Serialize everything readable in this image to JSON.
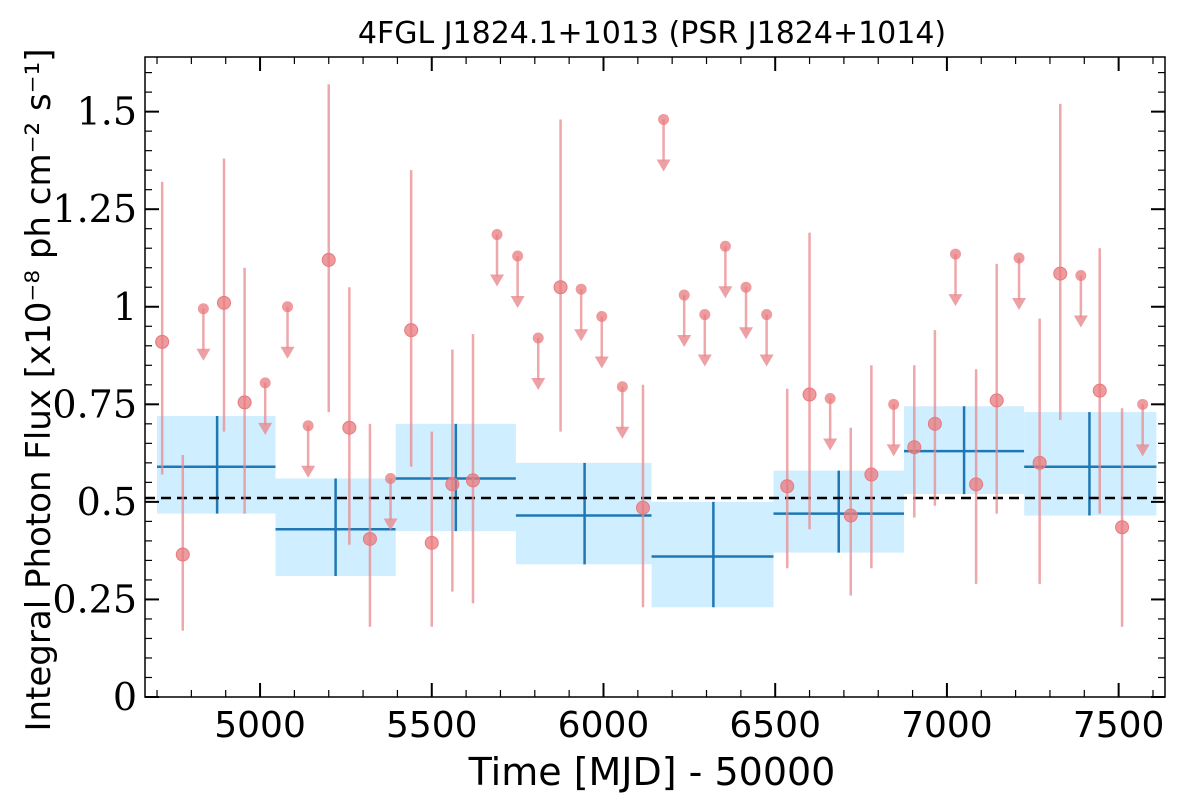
{
  "chart_data": {
    "type": "scatter",
    "title": "4FGL J1824.1+1013 (PSR J1824+1014)",
    "xlabel": "Time [MJD] - 50000",
    "ylabel": "Integral Photon Flux [x10⁻⁸ ph cm⁻² s⁻¹]",
    "xlim": [
      4665,
      7635
    ],
    "ylim": [
      0,
      1.64
    ],
    "xticks": [
      5000,
      5500,
      6000,
      6500,
      7000,
      7500
    ],
    "xtick_labels": [
      "5000",
      "5500",
      "6000",
      "6500",
      "7000",
      "7500"
    ],
    "yticks": [
      0,
      0.25,
      0.5,
      0.75,
      1.0,
      1.25,
      1.5
    ],
    "ytick_labels": [
      "0",
      "0.25",
      "0.5",
      "0.75",
      "1",
      "1.25",
      "1.5"
    ],
    "colors": {
      "points": "#e8797e",
      "errorbars": "#e8898e",
      "bins_fill": "#cfeeff",
      "bins_line": "#1f77b4",
      "reference_line": "#000000"
    },
    "reference_line": {
      "y": 0.51,
      "style": "dashed"
    },
    "detections": [
      {
        "x": 4715,
        "y": 0.91,
        "lo": 0.57,
        "hi": 1.32
      },
      {
        "x": 4775,
        "y": 0.365,
        "lo": 0.17,
        "hi": 0.62
      },
      {
        "x": 4895,
        "y": 1.01,
        "lo": 0.68,
        "hi": 1.38
      },
      {
        "x": 4955,
        "y": 0.755,
        "lo": 0.47,
        "hi": 1.1
      },
      {
        "x": 5200,
        "y": 1.12,
        "lo": 0.73,
        "hi": 1.57
      },
      {
        "x": 5260,
        "y": 0.69,
        "lo": 0.39,
        "hi": 1.05
      },
      {
        "x": 5320,
        "y": 0.405,
        "lo": 0.18,
        "hi": 0.7
      },
      {
        "x": 5440,
        "y": 0.94,
        "lo": 0.59,
        "hi": 1.35
      },
      {
        "x": 5500,
        "y": 0.395,
        "lo": 0.18,
        "hi": 0.68
      },
      {
        "x": 5560,
        "y": 0.545,
        "lo": 0.27,
        "hi": 0.89
      },
      {
        "x": 5620,
        "y": 0.555,
        "lo": 0.24,
        "hi": 0.93
      },
      {
        "x": 5875,
        "y": 1.05,
        "lo": 0.68,
        "hi": 1.48
      },
      {
        "x": 6115,
        "y": 0.485,
        "lo": 0.23,
        "hi": 0.8
      },
      {
        "x": 6535,
        "y": 0.54,
        "lo": 0.33,
        "hi": 0.79
      },
      {
        "x": 6600,
        "y": 0.775,
        "lo": 0.43,
        "hi": 1.19
      },
      {
        "x": 6720,
        "y": 0.465,
        "lo": 0.26,
        "hi": 0.69
      },
      {
        "x": 6780,
        "y": 0.57,
        "lo": 0.33,
        "hi": 0.85
      },
      {
        "x": 6905,
        "y": 0.64,
        "lo": 0.46,
        "hi": 0.85
      },
      {
        "x": 6965,
        "y": 0.7,
        "lo": 0.49,
        "hi": 0.94
      },
      {
        "x": 7085,
        "y": 0.545,
        "lo": 0.29,
        "hi": 0.84
      },
      {
        "x": 7145,
        "y": 0.76,
        "lo": 0.47,
        "hi": 1.11
      },
      {
        "x": 7270,
        "y": 0.6,
        "lo": 0.29,
        "hi": 0.97
      },
      {
        "x": 7330,
        "y": 1.085,
        "lo": 0.71,
        "hi": 1.52
      },
      {
        "x": 7445,
        "y": 0.785,
        "lo": 0.47,
        "hi": 1.15
      },
      {
        "x": 7510,
        "y": 0.435,
        "lo": 0.18,
        "hi": 0.74
      }
    ],
    "upper_limits": [
      {
        "x": 4835,
        "y": 0.995
      },
      {
        "x": 5015,
        "y": 0.805
      },
      {
        "x": 5080,
        "y": 1.0
      },
      {
        "x": 5140,
        "y": 0.695
      },
      {
        "x": 5380,
        "y": 0.56
      },
      {
        "x": 5690,
        "y": 1.185
      },
      {
        "x": 5750,
        "y": 1.13
      },
      {
        "x": 5810,
        "y": 0.92
      },
      {
        "x": 5935,
        "y": 1.045
      },
      {
        "x": 5995,
        "y": 0.975
      },
      {
        "x": 6055,
        "y": 0.795
      },
      {
        "x": 6175,
        "y": 1.48
      },
      {
        "x": 6235,
        "y": 1.03
      },
      {
        "x": 6295,
        "y": 0.98
      },
      {
        "x": 6355,
        "y": 1.155
      },
      {
        "x": 6415,
        "y": 1.05
      },
      {
        "x": 6475,
        "y": 0.98
      },
      {
        "x": 6660,
        "y": 0.765
      },
      {
        "x": 6845,
        "y": 0.75
      },
      {
        "x": 7025,
        "y": 1.135
      },
      {
        "x": 7210,
        "y": 1.125
      },
      {
        "x": 7390,
        "y": 1.08
      },
      {
        "x": 7570,
        "y": 0.75
      }
    ],
    "bins": [
      {
        "x0": 4700,
        "x1": 5045,
        "xc": 4875,
        "y": 0.59,
        "lo": 0.47,
        "hi": 0.72
      },
      {
        "x0": 5045,
        "x1": 5395,
        "xc": 5220,
        "y": 0.43,
        "lo": 0.31,
        "hi": 0.56
      },
      {
        "x0": 5395,
        "x1": 5745,
        "xc": 5570,
        "y": 0.56,
        "lo": 0.425,
        "hi": 0.7
      },
      {
        "x0": 5745,
        "x1": 6140,
        "xc": 5945,
        "y": 0.465,
        "lo": 0.34,
        "hi": 0.6
      },
      {
        "x0": 6140,
        "x1": 6495,
        "xc": 6320,
        "y": 0.36,
        "lo": 0.23,
        "hi": 0.5
      },
      {
        "x0": 6495,
        "x1": 6875,
        "xc": 6685,
        "y": 0.47,
        "lo": 0.37,
        "hi": 0.58
      },
      {
        "x0": 6875,
        "x1": 7225,
        "xc": 7050,
        "y": 0.63,
        "lo": 0.52,
        "hi": 0.745
      },
      {
        "x0": 7225,
        "x1": 7610,
        "xc": 7415,
        "y": 0.59,
        "lo": 0.465,
        "hi": 0.73
      }
    ]
  }
}
